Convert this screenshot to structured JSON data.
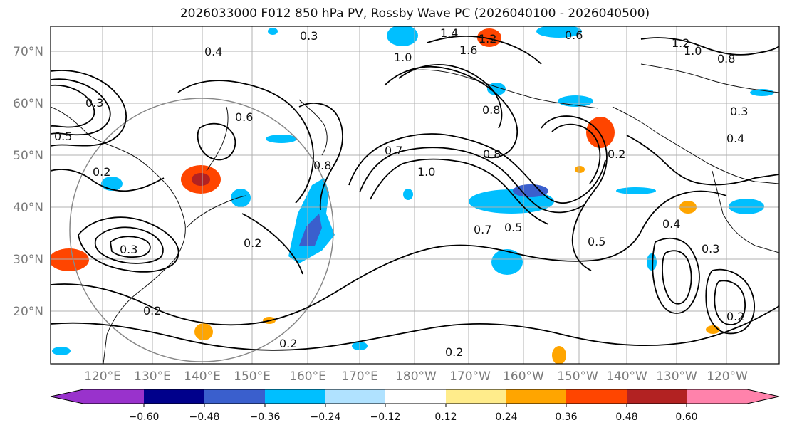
{
  "title": "2026033000 F012 850 hPa PV, Rossby Wave PC (2026040100 - 2026040500)",
  "lat_labels": [
    "70°N",
    "60°N",
    "50°N",
    "40°N",
    "30°N",
    "20°N"
  ],
  "lon_labels": [
    "120°E",
    "130°E",
    "140°E",
    "150°E",
    "160°E",
    "170°E",
    "180°W",
    "170°W",
    "160°W",
    "150°W",
    "140°W",
    "130°W",
    "120°W"
  ],
  "contour_labels": [
    "0.3",
    "1.4",
    "1.2",
    "0.6",
    "1.6",
    "0.4",
    "1.0",
    "1.2",
    "1.0",
    "0.8",
    "0.3",
    "0.3",
    "0.5",
    "0.2",
    "0.8",
    "0.4",
    "0.8",
    "0.7",
    "1.0",
    "0.8",
    "0.6",
    "0.2",
    "0.7",
    "0.5",
    "0.5",
    "0.2",
    "0.2",
    "0.2",
    "0.3",
    "0.4",
    "0.2",
    "0.2",
    "0.3"
  ],
  "colorbar": {
    "tick_labels": [
      "−0.60",
      "−0.48",
      "−0.36",
      "−0.24",
      "−0.12",
      "0.12",
      "0.24",
      "0.36",
      "0.48",
      "0.60"
    ],
    "colors": [
      "#9932cc",
      "#00008b",
      "#3a5fcd",
      "#00bfff",
      "#b0e2ff",
      "#ffffff",
      "#ffec8b",
      "#ffa500",
      "#ff4500",
      "#b22222",
      "#ff82ab"
    ]
  }
}
